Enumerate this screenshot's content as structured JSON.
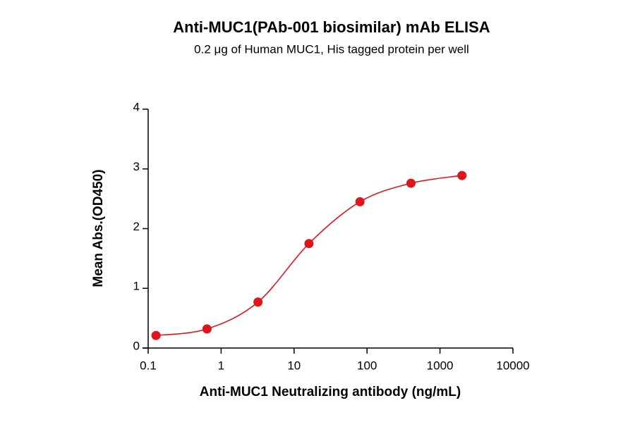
{
  "chart_data": {
    "type": "scatter",
    "title": "Anti-MUC1(PAb-001 biosimilar) mAb ELISA",
    "subtitle": "0.2 μg of Human MUC1, His tagged protein per well",
    "x_label": "Anti-MUC1 Neutralizing antibody (ng/mL)",
    "y_label": "Mean Abs.(OD450)",
    "x_scale": "log",
    "xlim": [
      0.1,
      10000
    ],
    "xticks": [
      0.1,
      1,
      10,
      100,
      1000,
      10000
    ],
    "ylim": [
      0,
      4
    ],
    "yticks": [
      0,
      1,
      2,
      3,
      4
    ],
    "fit_curve": true,
    "series": [
      {
        "color": "#e0141b",
        "x": [
          0.128,
          0.64,
          3.2,
          16,
          80,
          400,
          2000
        ],
        "values": [
          0.21,
          0.32,
          0.77,
          1.75,
          2.45,
          2.76,
          2.89
        ]
      }
    ]
  }
}
